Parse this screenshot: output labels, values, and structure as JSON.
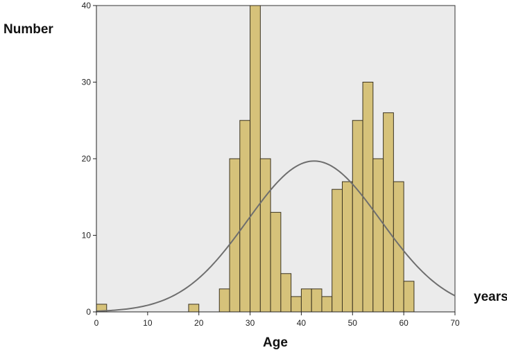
{
  "chart_data": {
    "type": "bar",
    "title": "",
    "xlabel": "Age",
    "ylabel": "Number",
    "x_unit_label": "years",
    "xlim": [
      0,
      70
    ],
    "ylim": [
      0,
      40
    ],
    "x_ticks": [
      0,
      10,
      20,
      30,
      40,
      50,
      60,
      70
    ],
    "y_ticks": [
      0,
      10,
      20,
      30,
      40
    ],
    "grid": false,
    "bin_width": 2,
    "bins": [
      {
        "start": 0,
        "end": 2,
        "value": 1
      },
      {
        "start": 18,
        "end": 20,
        "value": 1
      },
      {
        "start": 24,
        "end": 26,
        "value": 3
      },
      {
        "start": 26,
        "end": 28,
        "value": 20
      },
      {
        "start": 28,
        "end": 30,
        "value": 25
      },
      {
        "start": 30,
        "end": 32,
        "value": 40
      },
      {
        "start": 32,
        "end": 34,
        "value": 20
      },
      {
        "start": 34,
        "end": 36,
        "value": 13
      },
      {
        "start": 36,
        "end": 38,
        "value": 5
      },
      {
        "start": 38,
        "end": 40,
        "value": 2
      },
      {
        "start": 40,
        "end": 42,
        "value": 3
      },
      {
        "start": 42,
        "end": 44,
        "value": 3
      },
      {
        "start": 44,
        "end": 46,
        "value": 2
      },
      {
        "start": 46,
        "end": 48,
        "value": 16
      },
      {
        "start": 48,
        "end": 50,
        "value": 17
      },
      {
        "start": 50,
        "end": 52,
        "value": 25
      },
      {
        "start": 52,
        "end": 54,
        "value": 30
      },
      {
        "start": 54,
        "end": 56,
        "value": 20
      },
      {
        "start": 56,
        "end": 58,
        "value": 26
      },
      {
        "start": 58,
        "end": 60,
        "value": 17
      },
      {
        "start": 60,
        "end": 62,
        "value": 4
      }
    ],
    "normal_curve": {
      "mean": 42.5,
      "sd": 13,
      "peak": 19.7
    },
    "colors": {
      "bar_fill": "#d6c27a",
      "bar_stroke": "#3a3220",
      "plot_background": "#ebebeb",
      "curve": "#6e6e6e"
    }
  }
}
